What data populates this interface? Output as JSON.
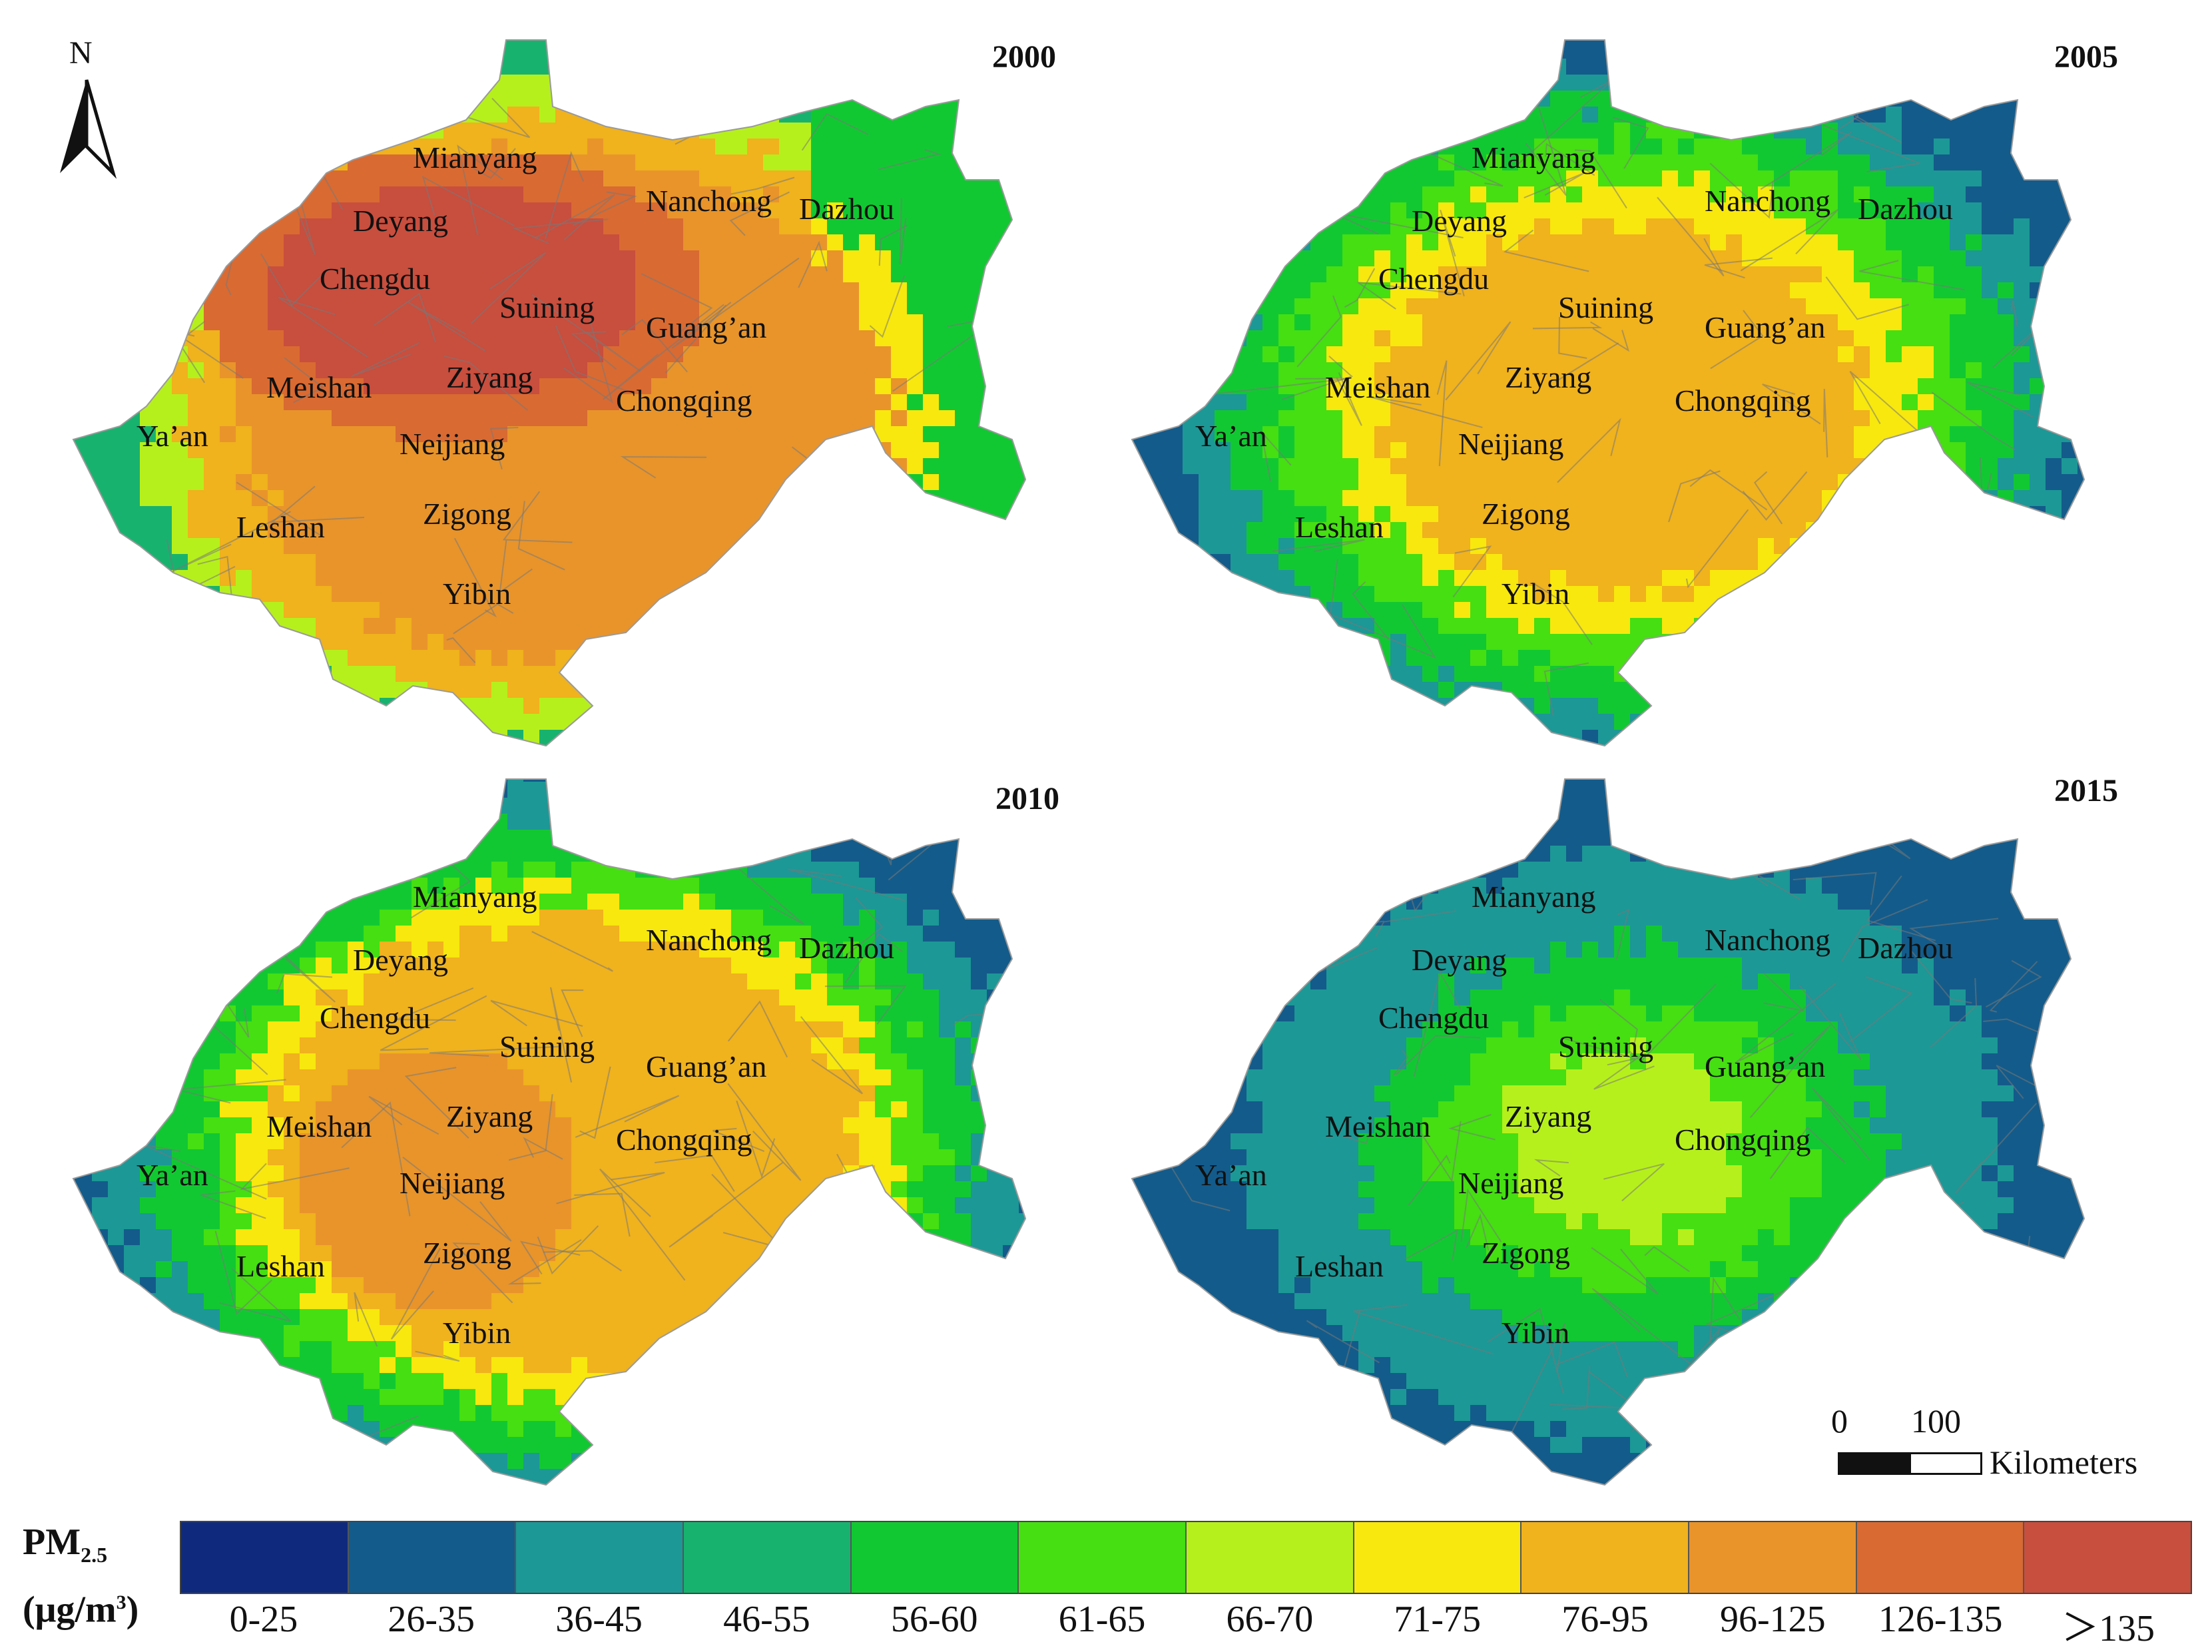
{
  "north_label": "N",
  "panels": [
    {
      "year": "2000",
      "mode": "high"
    },
    {
      "year": "2005",
      "mode": "mid"
    },
    {
      "year": "2010",
      "mode": "mid2"
    },
    {
      "year": "2015",
      "mode": "low"
    }
  ],
  "cities": [
    "Mianyang",
    "Deyang",
    "Chengdu",
    "Nanchong",
    "Dazhou",
    "Suining",
    "Guang’an",
    "Meishan",
    "Ziyang",
    "Chongqing",
    "Ya’an",
    "Neijiang",
    "Leshan",
    "Zigong",
    "Yibin"
  ],
  "legend": {
    "title": {
      "main": "PM",
      "sub": "2.5",
      "unit_pre": "(μg/m",
      "unit_sup": "3",
      "unit_post": ")"
    },
    "classes": [
      {
        "label": "0-25",
        "color": "#0f2a7c"
      },
      {
        "label": "26-35",
        "color": "#135b8a"
      },
      {
        "label": "36-45",
        "color": "#1c9896"
      },
      {
        "label": "46-55",
        "color": "#18b26f"
      },
      {
        "label": "56-60",
        "color": "#12c832"
      },
      {
        "label": "61-65",
        "color": "#45df12"
      },
      {
        "label": "66-70",
        "color": "#b6f01c"
      },
      {
        "label": "71-75",
        "color": "#f8e80d"
      },
      {
        "label": "76-95",
        "color": "#f0b21d"
      },
      {
        "label": "96-125",
        "color": "#e8942b"
      },
      {
        "label": "126-135",
        "color": "#d96a32"
      },
      {
        "label": "＞135",
        "color": "#c84e3e"
      }
    ]
  },
  "scalebar": {
    "zero": "0",
    "hundred": "100",
    "unit": "Kilometers"
  }
}
